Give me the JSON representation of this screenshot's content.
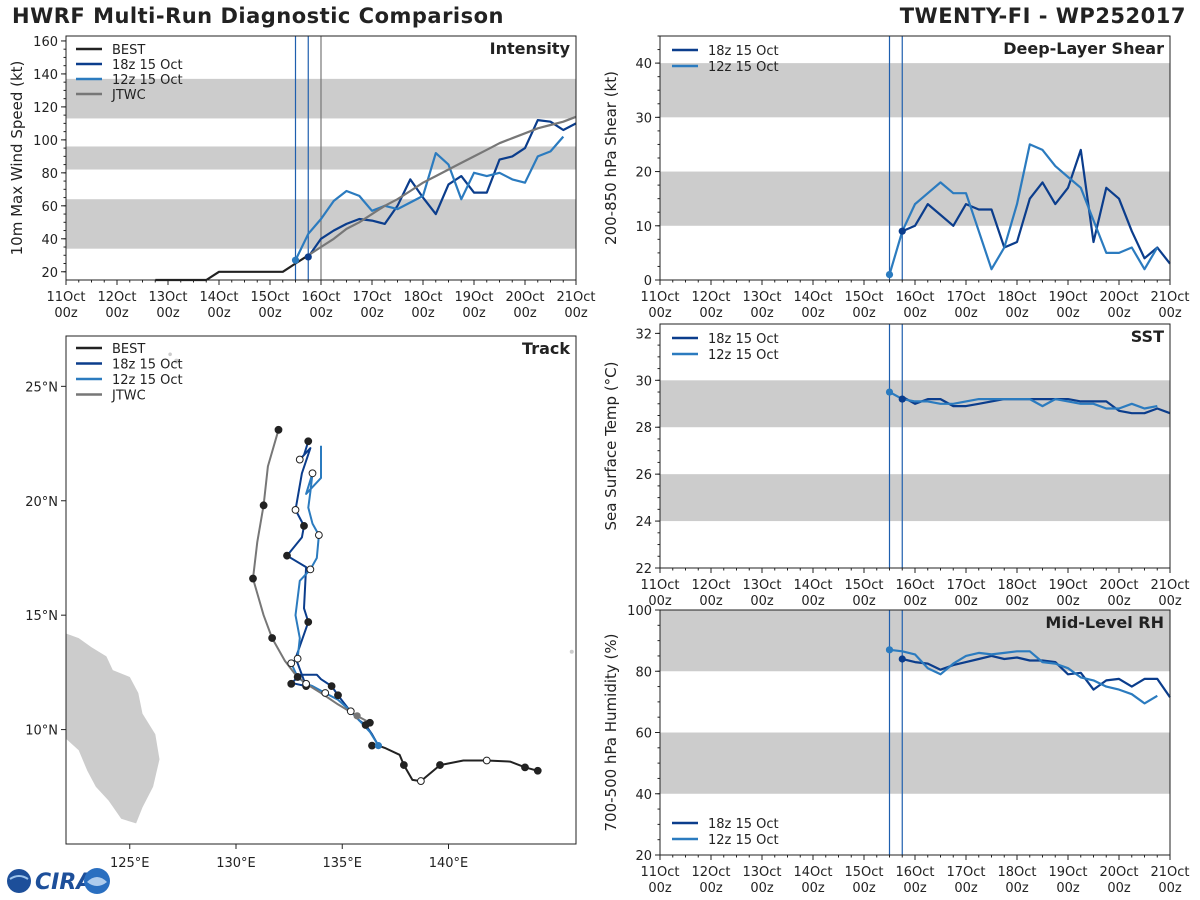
{
  "header": {
    "title": "HWRF Multi-Run Diagnostic Comparison",
    "storm": "TWENTY-FI - WP252017"
  },
  "logo": {
    "text": "CIRA"
  },
  "colors": {
    "best": "#222222",
    "run18z": "#0b3d8c",
    "run12z": "#2b7bbf",
    "jtwc": "#777777",
    "band": "#cccccc",
    "vline": "#1f5fae"
  },
  "time_axis": {
    "range_hours": [
      0,
      240
    ],
    "ticks": [
      {
        "hours": 0,
        "day": "11Oct",
        "hour": "00z"
      },
      {
        "hours": 24,
        "day": "12Oct",
        "hour": "00z"
      },
      {
        "hours": 48,
        "day": "13Oct",
        "hour": "00z"
      },
      {
        "hours": 72,
        "day": "14Oct",
        "hour": "00z"
      },
      {
        "hours": 96,
        "day": "15Oct",
        "hour": "00z"
      },
      {
        "hours": 120,
        "day": "16Oct",
        "hour": "00z"
      },
      {
        "hours": 144,
        "day": "17Oct",
        "hour": "00z"
      },
      {
        "hours": 168,
        "day": "18Oct",
        "hour": "00z"
      },
      {
        "hours": 192,
        "day": "19Oct",
        "hour": "00z"
      },
      {
        "hours": 216,
        "day": "20Oct",
        "hour": "00z"
      },
      {
        "hours": 240,
        "day": "21Oct",
        "hour": "00z"
      }
    ],
    "init_lines_hours": [
      108,
      114,
      120
    ]
  },
  "chart_data": [
    {
      "id": "intensity",
      "type": "line",
      "title": "Intensity",
      "ylabel": "10m Max Wind Speed (kt)",
      "ylim": [
        15,
        163
      ],
      "yticks": [
        20,
        40,
        60,
        80,
        100,
        120,
        140,
        160
      ],
      "bands": [
        [
          34,
          64
        ],
        [
          82,
          96
        ],
        [
          113,
          137
        ]
      ],
      "legend": [
        "BEST",
        "18z 15 Oct",
        "12z 15 Oct",
        "JTWC"
      ],
      "series": [
        {
          "name": "BEST",
          "key": "best",
          "x": [
            42,
            48,
            54,
            60,
            66,
            72,
            78,
            84,
            90,
            96,
            102,
            108,
            114
          ],
          "values": [
            15,
            15,
            15,
            15,
            15,
            20,
            20,
            20,
            20,
            20,
            20,
            25,
            30
          ]
        },
        {
          "name": "18z 15 Oct",
          "key": "run18z",
          "x": [
            114,
            120,
            126,
            132,
            138,
            144,
            150,
            156,
            162,
            168,
            174,
            180,
            186,
            192,
            198,
            204,
            210,
            216,
            222,
            228,
            234,
            240
          ],
          "values": [
            29,
            40,
            45,
            49,
            52,
            51,
            49,
            60,
            76,
            65,
            55,
            73,
            78,
            68,
            68,
            88,
            90,
            95,
            112,
            111,
            106,
            110
          ]
        },
        {
          "name": "12z 15 Oct",
          "key": "run12z",
          "x": [
            108,
            114,
            120,
            126,
            132,
            138,
            144,
            150,
            156,
            162,
            168,
            174,
            180,
            186,
            192,
            198,
            204,
            210,
            216,
            222,
            228,
            234
          ],
          "values": [
            27,
            43,
            52,
            63,
            69,
            66,
            57,
            60,
            58,
            62,
            66,
            92,
            85,
            64,
            80,
            78,
            80,
            76,
            74,
            90,
            93,
            102
          ]
        },
        {
          "name": "JTWC",
          "key": "jtwc",
          "x": [
            114,
            120,
            126,
            132,
            138,
            144,
            150,
            156,
            162,
            168,
            174,
            180,
            186,
            192,
            198,
            204,
            210,
            216,
            222,
            228,
            234,
            240
          ],
          "values": [
            30,
            35,
            40,
            46,
            50,
            55,
            60,
            64,
            69,
            74,
            78,
            82,
            86,
            90,
            94,
            98,
            101,
            104,
            107,
            109,
            111,
            114
          ]
        }
      ],
      "markers": [
        {
          "series": "12z 15 Oct",
          "x": 108,
          "y": 27
        },
        {
          "series": "18z 15 Oct",
          "x": 114,
          "y": 29
        }
      ]
    },
    {
      "id": "shear",
      "type": "line",
      "title": "Deep-Layer Shear",
      "ylabel": "200-850 hPa Shear (kt)",
      "ylim": [
        0,
        45
      ],
      "yticks": [
        0,
        10,
        20,
        30,
        40
      ],
      "bands": [
        [
          10,
          20
        ],
        [
          30,
          40
        ]
      ],
      "legend": [
        "18z 15 Oct",
        "12z 15 Oct"
      ],
      "series": [
        {
          "name": "18z 15 Oct",
          "key": "run18z",
          "x": [
            114,
            120,
            126,
            132,
            138,
            144,
            150,
            156,
            162,
            168,
            174,
            180,
            186,
            192,
            198,
            204,
            210,
            216,
            222,
            228,
            234,
            240
          ],
          "values": [
            9,
            10,
            14,
            12,
            10,
            14,
            13,
            13,
            6,
            7,
            15,
            18,
            14,
            17,
            24,
            7,
            17,
            15,
            9,
            4,
            6,
            3
          ]
        },
        {
          "name": "12z 15 Oct",
          "key": "run12z",
          "x": [
            108,
            114,
            120,
            126,
            132,
            138,
            144,
            150,
            156,
            162,
            168,
            174,
            180,
            186,
            192,
            198,
            204,
            210,
            216,
            222,
            228,
            234
          ],
          "values": [
            1,
            9,
            14,
            16,
            18,
            16,
            16,
            9,
            2,
            6,
            14,
            25,
            24,
            21,
            19,
            17,
            11,
            5,
            5,
            6,
            2,
            6
          ]
        }
      ],
      "markers": [
        {
          "series": "12z 15 Oct",
          "x": 108,
          "y": 1
        },
        {
          "series": "18z 15 Oct",
          "x": 114,
          "y": 9
        }
      ]
    },
    {
      "id": "sst",
      "type": "line",
      "title": "SST",
      "ylabel": "Sea Surface Temp (°C)",
      "ylim": [
        22,
        32.4
      ],
      "yticks": [
        22,
        24,
        26,
        28,
        30,
        32
      ],
      "bands": [
        [
          24,
          26
        ],
        [
          28,
          30
        ]
      ],
      "legend": [
        "18z 15 Oct",
        "12z 15 Oct"
      ],
      "series": [
        {
          "name": "18z 15 Oct",
          "key": "run18z",
          "x": [
            114,
            120,
            126,
            132,
            138,
            144,
            150,
            156,
            162,
            168,
            174,
            180,
            186,
            192,
            198,
            204,
            210,
            216,
            222,
            228,
            234,
            240
          ],
          "values": [
            29.3,
            29.0,
            29.2,
            29.2,
            28.9,
            28.9,
            29.0,
            29.1,
            29.2,
            29.2,
            29.2,
            29.2,
            29.2,
            29.2,
            29.1,
            29.1,
            29.1,
            28.7,
            28.6,
            28.6,
            28.8,
            28.6
          ]
        },
        {
          "name": "12z 15 Oct",
          "key": "run12z",
          "x": [
            108,
            114,
            120,
            126,
            132,
            138,
            144,
            150,
            156,
            162,
            168,
            174,
            180,
            186,
            192,
            198,
            204,
            210,
            216,
            222,
            228,
            234
          ],
          "values": [
            29.5,
            29.2,
            29.1,
            29.1,
            29.0,
            29.0,
            29.1,
            29.2,
            29.2,
            29.2,
            29.2,
            29.2,
            28.9,
            29.2,
            29.1,
            29.0,
            29.0,
            28.8,
            28.8,
            29.0,
            28.8,
            28.9
          ]
        }
      ],
      "markers": [
        {
          "series": "12z 15 Oct",
          "x": 108,
          "y": 29.5
        },
        {
          "series": "18z 15 Oct",
          "x": 114,
          "y": 29.2
        }
      ]
    },
    {
      "id": "rh",
      "type": "line",
      "title": "Mid-Level RH",
      "ylabel": "700-500 hPa Humidity (%)",
      "ylim": [
        20,
        100
      ],
      "yticks": [
        20,
        40,
        60,
        80,
        100
      ],
      "bands": [
        [
          40,
          60
        ],
        [
          80,
          100
        ]
      ],
      "legend": [
        "18z 15 Oct",
        "12z 15 Oct"
      ],
      "series": [
        {
          "name": "18z 15 Oct",
          "key": "run18z",
          "x": [
            114,
            120,
            126,
            132,
            138,
            144,
            150,
            156,
            162,
            168,
            174,
            180,
            186,
            192,
            198,
            204,
            210,
            216,
            222,
            228,
            234,
            240
          ],
          "values": [
            84,
            83,
            82.5,
            80.5,
            82,
            83,
            84,
            85,
            84,
            84.5,
            83.5,
            83.5,
            83,
            79,
            79.5,
            74,
            77,
            77.5,
            75,
            77.5,
            77.5,
            71.5
          ]
        },
        {
          "name": "12z 15 Oct",
          "key": "run12z",
          "x": [
            108,
            114,
            120,
            126,
            132,
            138,
            144,
            150,
            156,
            162,
            168,
            174,
            180,
            186,
            192,
            198,
            204,
            210,
            216,
            222,
            228,
            234
          ],
          "values": [
            87,
            86.5,
            85.5,
            81,
            79,
            82.5,
            85,
            86,
            85.5,
            86,
            86.5,
            86.5,
            83,
            82.5,
            81,
            78,
            77,
            75,
            74,
            72.5,
            69.5,
            72
          ]
        }
      ],
      "markers": [
        {
          "series": "12z 15 Oct",
          "x": 108,
          "y": 87
        },
        {
          "series": "18z 15 Oct",
          "x": 114,
          "y": 84
        }
      ]
    },
    {
      "id": "track",
      "type": "scatter",
      "title": "Track",
      "xlim": [
        122.0,
        146.0
      ],
      "ylim": [
        5.0,
        27.2
      ],
      "xticks": [
        {
          "v": 125,
          "label": "125°E"
        },
        {
          "v": 130,
          "label": "130°E"
        },
        {
          "v": 135,
          "label": "135°E"
        },
        {
          "v": 140,
          "label": "140°E"
        }
      ],
      "yticks": [
        {
          "v": 10,
          "label": "10°N"
        },
        {
          "v": 15,
          "label": "15°N"
        },
        {
          "v": 20,
          "label": "20°N"
        },
        {
          "v": 25,
          "label": "25°N"
        }
      ],
      "legend": [
        "BEST",
        "18z 15 Oct",
        "12z 15 Oct",
        "JTWC"
      ],
      "series": [
        {
          "name": "BEST",
          "key": "best",
          "lon": [
            144.2,
            143.6,
            142.9,
            141.8,
            140.7,
            139.6,
            138.7,
            138.3,
            137.9,
            137.7,
            137.0,
            136.7,
            136.4
          ],
          "lat": [
            8.2,
            8.35,
            8.6,
            8.65,
            8.65,
            8.45,
            7.75,
            7.8,
            8.45,
            8.9,
            9.2,
            9.3,
            9.3
          ],
          "marker_idx": [
            0,
            1,
            3,
            5,
            6,
            8,
            12
          ],
          "open_idx": [
            3,
            6
          ]
        },
        {
          "name": "18z 15 Oct",
          "key": "run18z",
          "lon": [
            136.7,
            136.4,
            136.1,
            135.8,
            135.3,
            134.8,
            134.5,
            134.0,
            133.8,
            133.0,
            132.6,
            132.8,
            133.3,
            132.9,
            132.8,
            133.4,
            133.2,
            133.3,
            132.4,
            133.1,
            133.2,
            132.8,
            133.1,
            133.5,
            133.0,
            133.2,
            133.4
          ],
          "lat": [
            9.3,
            9.8,
            10.2,
            10.4,
            10.9,
            11.5,
            11.9,
            12.2,
            12.4,
            12.4,
            12.0,
            12.0,
            11.9,
            12.9,
            13.1,
            14.7,
            15.3,
            17.1,
            17.6,
            18.4,
            18.9,
            19.6,
            21.2,
            22.3,
            21.8,
            22.0,
            22.6
          ],
          "marker_idx": [
            2,
            5,
            6,
            10,
            12,
            15,
            18,
            20,
            21,
            24,
            26
          ],
          "open_idx": [
            21,
            24
          ]
        },
        {
          "name": "12z 15 Oct",
          "key": "run12z",
          "lon": [
            136.7,
            136.3,
            135.9,
            135.4,
            134.8,
            134.2,
            133.6,
            133.3,
            132.9,
            132.6,
            132.9,
            133.0,
            132.8,
            133.0,
            133.5,
            133.8,
            133.9,
            133.6,
            133.4,
            133.5,
            133.6,
            133.3,
            134.0,
            134.0,
            134.0
          ],
          "lat": [
            9.3,
            9.9,
            10.3,
            10.8,
            11.3,
            11.6,
            11.9,
            12.0,
            12.3,
            12.9,
            13.1,
            14.0,
            15.0,
            16.5,
            17.0,
            17.5,
            18.5,
            19.0,
            19.7,
            20.4,
            21.2,
            20.3,
            21.0,
            21.5,
            22.4
          ],
          "marker_idx": [
            3,
            5,
            7,
            8,
            9,
            10,
            14,
            16,
            20
          ],
          "open_idx": [
            3,
            5,
            7,
            9,
            10,
            14,
            16,
            20
          ]
        },
        {
          "name": "JTWC",
          "key": "jtwc",
          "lon": [
            136.3,
            135.7,
            134.8,
            134.0,
            133.3,
            132.8,
            132.3,
            131.7,
            131.3,
            130.8,
            131.0,
            131.3,
            131.5,
            132.0
          ],
          "lat": [
            10.3,
            10.6,
            11.1,
            11.6,
            12.0,
            12.4,
            13.0,
            14.0,
            15.0,
            16.6,
            18.2,
            19.8,
            21.5,
            23.1
          ],
          "marker_idx": [
            0,
            7,
            9,
            11,
            13
          ],
          "open_idx": []
        }
      ]
    }
  ]
}
